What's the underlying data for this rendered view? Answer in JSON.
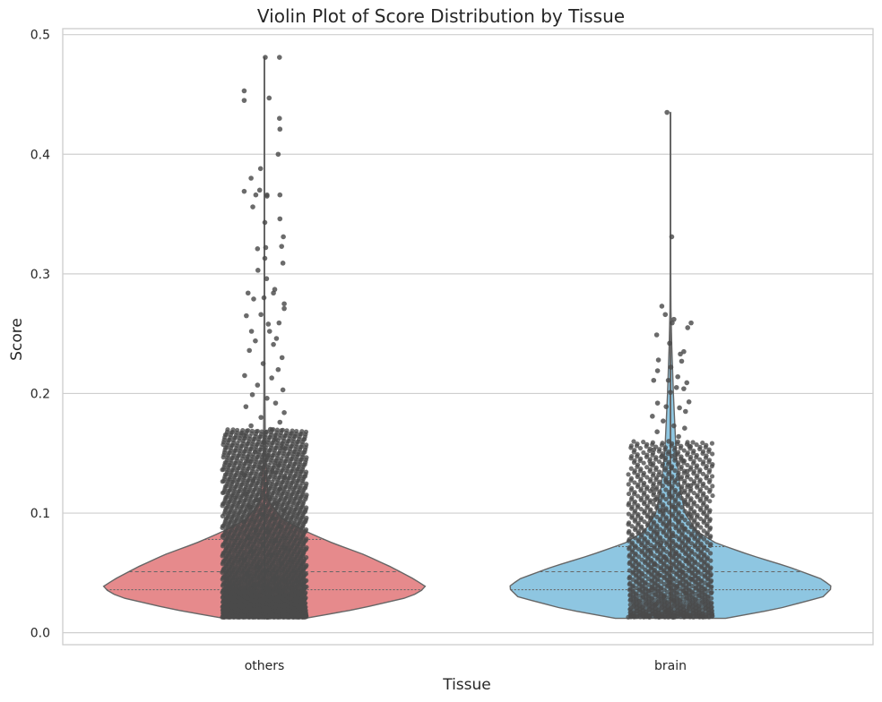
{
  "chart_data": {
    "type": "violin",
    "title": "Violin Plot of Score Distribution by Tissue",
    "xlabel": "Tissue",
    "ylabel": "Score",
    "ylim": [
      -0.01,
      0.505
    ],
    "y_ticks": [
      "0.0",
      "0.1",
      "0.2",
      "0.3",
      "0.4",
      "0.5"
    ],
    "y_tick_values": [
      0.0,
      0.1,
      0.2,
      0.3,
      0.4,
      0.5
    ],
    "grid": true,
    "legend": "none",
    "categories": [
      "others",
      "brain"
    ],
    "colors": {
      "others": "#e68a8c",
      "brain": "#8ec6e1",
      "points": "#4a4a4a",
      "grid": "#cfcfcf",
      "outline": "#666666",
      "frame": "#cccccc"
    },
    "series": [
      {
        "category": "others",
        "min_visible": 0.012,
        "q1": 0.036,
        "median": 0.051,
        "q3": 0.078,
        "max_visible": 0.481,
        "density_profile": [
          [
            0.012,
            0.25
          ],
          [
            0.02,
            0.58
          ],
          [
            0.03,
            0.9
          ],
          [
            0.038,
            1.0
          ],
          [
            0.045,
            0.92
          ],
          [
            0.055,
            0.78
          ],
          [
            0.065,
            0.62
          ],
          [
            0.075,
            0.42
          ],
          [
            0.085,
            0.25
          ],
          [
            0.095,
            0.11
          ],
          [
            0.11,
            0.025
          ],
          [
            0.15,
            0.006
          ],
          [
            0.2,
            0.003
          ],
          [
            0.3,
            0.0015
          ],
          [
            0.4,
            0.0008
          ],
          [
            0.481,
            0.0002
          ]
        ],
        "strip_points": [
          [
            0.35,
            0.481
          ],
          [
            0.02,
            0.481
          ],
          [
            -0.47,
            0.453
          ],
          [
            -0.47,
            0.445
          ],
          [
            0.11,
            0.447
          ],
          [
            0.35,
            0.43
          ],
          [
            0.36,
            0.421
          ],
          [
            0.32,
            0.4
          ],
          [
            -0.09,
            0.388
          ],
          [
            -0.47,
            0.369
          ],
          [
            -0.31,
            0.38
          ],
          [
            -0.11,
            0.37
          ],
          [
            0.06,
            0.366
          ],
          [
            0.06,
            0.365
          ],
          [
            0.36,
            0.366
          ],
          [
            -0.2,
            0.366
          ],
          [
            -0.27,
            0.356
          ],
          [
            0.36,
            0.346
          ],
          [
            0.01,
            0.343
          ],
          [
            0.44,
            0.331
          ],
          [
            0.4,
            0.323
          ],
          [
            0.03,
            0.322
          ],
          [
            -0.16,
            0.321
          ],
          [
            0.01,
            0.313
          ],
          [
            -0.15,
            0.303
          ],
          [
            0.43,
            0.309
          ],
          [
            0.05,
            0.296
          ],
          [
            -0.38,
            0.284
          ],
          [
            0.21,
            0.284
          ],
          [
            0.24,
            0.287
          ],
          [
            -0.25,
            0.279
          ],
          [
            -0.01,
            0.28
          ],
          [
            0.46,
            0.275
          ],
          [
            0.46,
            0.271
          ],
          [
            -0.42,
            0.265
          ],
          [
            -0.08,
            0.266
          ],
          [
            0.34,
            0.259
          ],
          [
            0.09,
            0.258
          ],
          [
            -0.3,
            0.252
          ],
          [
            0.12,
            0.252
          ],
          [
            0.28,
            0.246
          ],
          [
            -0.21,
            0.244
          ],
          [
            0.21,
            0.241
          ],
          [
            -0.35,
            0.236
          ],
          [
            0.41,
            0.23
          ],
          [
            -0.03,
            0.225
          ],
          [
            0.32,
            0.22
          ],
          [
            -0.46,
            0.215
          ],
          [
            0.17,
            0.213
          ],
          [
            -0.16,
            0.207
          ],
          [
            0.43,
            0.203
          ],
          [
            -0.28,
            0.199
          ],
          [
            0.06,
            0.196
          ],
          [
            0.26,
            0.192
          ],
          [
            -0.43,
            0.189
          ],
          [
            0.46,
            0.184
          ],
          [
            -0.08,
            0.18
          ],
          [
            0.36,
            0.176
          ],
          [
            -0.31,
            0.173
          ],
          [
            0.14,
            0.17
          ],
          [
            -0.47,
            0.165
          ],
          [
            0.26,
            0.162
          ],
          [
            0.0,
            0.159
          ],
          [
            0.43,
            0.155
          ],
          [
            -0.21,
            0.151
          ],
          [
            0.08,
            0.148
          ],
          [
            -0.38,
            0.144
          ],
          [
            0.32,
            0.141
          ],
          [
            -0.1,
            0.138
          ],
          [
            0.19,
            0.135
          ],
          [
            -0.47,
            0.132
          ],
          [
            0.47,
            0.13
          ],
          [
            -0.26,
            0.127
          ],
          [
            0.04,
            0.124
          ],
          [
            0.36,
            0.12
          ],
          [
            -0.44,
            0.116
          ],
          [
            0.11,
            0.113
          ],
          [
            -0.16,
            0.111
          ],
          [
            0.28,
            0.108
          ],
          [
            -0.34,
            0.105
          ],
          [
            0.45,
            0.102
          ],
          [
            -0.05,
            0.099
          ],
          [
            0.2,
            0.096
          ],
          [
            -0.47,
            0.093
          ],
          [
            0.37,
            0.089
          ],
          [
            -0.2,
            0.086
          ],
          [
            0.08,
            0.084
          ],
          [
            -0.37,
            0.08
          ],
          [
            0.26,
            0.077
          ],
          [
            -0.03,
            0.074
          ],
          [
            0.47,
            0.071
          ],
          [
            -0.29,
            0.068
          ],
          [
            0.15,
            0.065
          ],
          [
            -0.47,
            0.061
          ],
          [
            0.39,
            0.058
          ],
          [
            -0.14,
            0.055
          ],
          [
            0.03,
            0.052
          ],
          [
            -0.41,
            0.049
          ],
          [
            0.24,
            0.046
          ],
          [
            0.47,
            0.043
          ],
          [
            -0.24,
            0.04
          ],
          [
            0.1,
            0.037
          ],
          [
            -0.47,
            0.033
          ],
          [
            0.34,
            0.03
          ],
          [
            -0.08,
            0.027
          ],
          [
            0.18,
            0.024
          ],
          [
            -0.35,
            0.021
          ],
          [
            0.44,
            0.018
          ],
          [
            -0.18,
            0.015
          ],
          [
            0.06,
            0.013
          ]
        ]
      },
      {
        "category": "brain",
        "min_visible": 0.012,
        "q1": 0.036,
        "median": 0.051,
        "q3": 0.072,
        "max_visible": 0.435,
        "density_profile": [
          [
            0.012,
            0.34
          ],
          [
            0.02,
            0.66
          ],
          [
            0.03,
            0.94
          ],
          [
            0.038,
            1.0
          ],
          [
            0.045,
            0.93
          ],
          [
            0.055,
            0.73
          ],
          [
            0.065,
            0.49
          ],
          [
            0.075,
            0.28
          ],
          [
            0.085,
            0.16
          ],
          [
            0.1,
            0.09
          ],
          [
            0.12,
            0.06
          ],
          [
            0.15,
            0.035
          ],
          [
            0.2,
            0.018
          ],
          [
            0.24,
            0.008
          ],
          [
            0.27,
            0.003
          ],
          [
            0.3,
            0.002
          ],
          [
            0.4,
            0.001
          ],
          [
            0.435,
            0.0002
          ]
        ],
        "strip_points": [
          [
            -0.08,
            0.435
          ],
          [
            0.03,
            0.331
          ],
          [
            -0.2,
            0.273
          ],
          [
            -0.12,
            0.266
          ],
          [
            0.08,
            0.262
          ],
          [
            0.04,
            0.259
          ],
          [
            0.48,
            0.259
          ],
          [
            0.4,
            0.255
          ],
          [
            -0.32,
            0.249
          ],
          [
            -0.02,
            0.242
          ],
          [
            0.31,
            0.235
          ],
          [
            0.23,
            0.233
          ],
          [
            -0.28,
            0.228
          ],
          [
            0.26,
            0.227
          ],
          [
            0.01,
            0.222
          ],
          [
            -0.3,
            0.219
          ],
          [
            0.17,
            0.214
          ],
          [
            -0.39,
            0.211
          ],
          [
            -0.05,
            0.211
          ],
          [
            0.38,
            0.209
          ],
          [
            0.31,
            0.204
          ],
          [
            0.14,
            0.205
          ],
          [
            0.0,
            0.201
          ],
          [
            0.43,
            0.193
          ],
          [
            -0.3,
            0.192
          ],
          [
            -0.1,
            0.189
          ],
          [
            0.21,
            0.188
          ],
          [
            0.35,
            0.185
          ],
          [
            -0.42,
            0.181
          ],
          [
            -0.17,
            0.177
          ],
          [
            0.08,
            0.173
          ],
          [
            0.33,
            0.171
          ],
          [
            -0.31,
            0.168
          ],
          [
            0.19,
            0.164
          ],
          [
            -0.04,
            0.16
          ],
          [
            0.44,
            0.156
          ],
          [
            -0.39,
            0.153
          ],
          [
            0.11,
            0.149
          ],
          [
            -0.21,
            0.147
          ],
          [
            0.28,
            0.144
          ],
          [
            -0.46,
            0.141
          ],
          [
            0.02,
            0.138
          ],
          [
            0.39,
            0.135
          ],
          [
            -0.27,
            0.132
          ],
          [
            0.17,
            0.129
          ],
          [
            -0.1,
            0.126
          ],
          [
            0.47,
            0.123
          ],
          [
            -0.42,
            0.12
          ],
          [
            0.24,
            0.117
          ],
          [
            -0.02,
            0.114
          ],
          [
            -0.36,
            0.111
          ],
          [
            0.34,
            0.108
          ],
          [
            0.09,
            0.105
          ],
          [
            -0.18,
            0.102
          ],
          [
            0.45,
            0.099
          ],
          [
            -0.45,
            0.096
          ],
          [
            0.18,
            0.093
          ],
          [
            -0.07,
            0.09
          ],
          [
            0.31,
            0.087
          ],
          [
            -0.31,
            0.084
          ],
          [
            0.05,
            0.081
          ],
          [
            0.42,
            0.078
          ],
          [
            -0.22,
            0.075
          ],
          [
            0.22,
            0.072
          ],
          [
            -0.47,
            0.069
          ],
          [
            0.11,
            0.066
          ],
          [
            -0.12,
            0.063
          ],
          [
            0.38,
            0.06
          ],
          [
            -0.36,
            0.057
          ],
          [
            0.01,
            0.054
          ],
          [
            0.27,
            0.051
          ],
          [
            -0.26,
            0.048
          ],
          [
            0.47,
            0.045
          ],
          [
            -0.04,
            0.042
          ],
          [
            0.16,
            0.039
          ],
          [
            -0.44,
            0.036
          ],
          [
            0.35,
            0.033
          ],
          [
            -0.16,
            0.03
          ],
          [
            0.07,
            0.027
          ],
          [
            -0.33,
            0.024
          ],
          [
            0.43,
            0.021
          ],
          [
            -0.09,
            0.018
          ],
          [
            0.19,
            0.016
          ],
          [
            -0.25,
            0.014
          ],
          [
            0.06,
            0.013
          ]
        ]
      }
    ]
  }
}
